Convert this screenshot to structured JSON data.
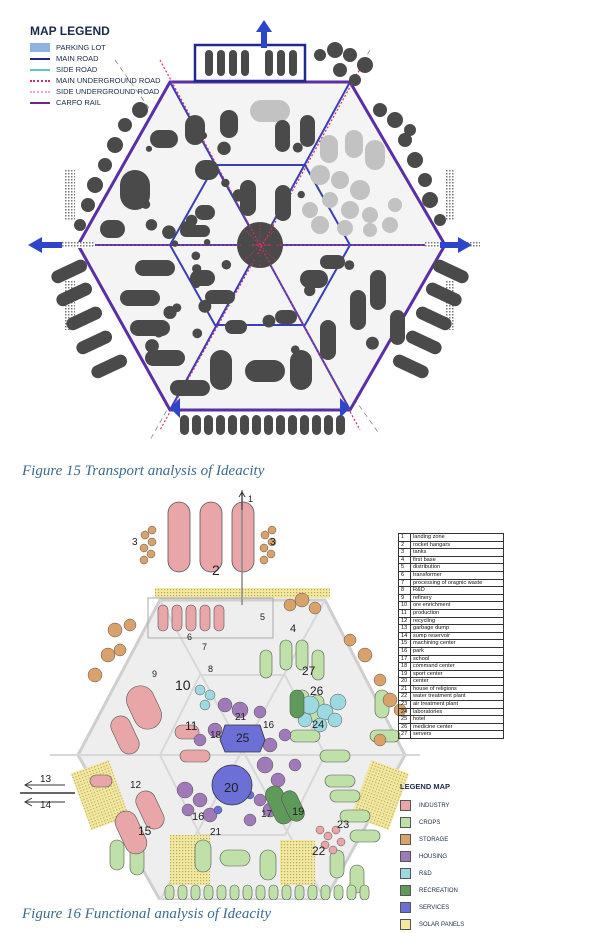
{
  "map1_legend": {
    "title": "MAP LEGEND",
    "items": [
      {
        "label": "PARKING LOT",
        "color": "#8fb3e0",
        "kind": "box"
      },
      {
        "label": "MAIN ROAD",
        "color": "#1f2a8a",
        "kind": "line"
      },
      {
        "label": "SIDE ROAD",
        "color": "#5fc3d0",
        "kind": "line"
      },
      {
        "label": "MAIN UNDERGROUND ROAD",
        "color": "#d0306a",
        "kind": "dots"
      },
      {
        "label": "SIDE UNDERGROUND ROAD",
        "color": "#f4a3c4",
        "kind": "dots"
      },
      {
        "label": "CARFO RAIL",
        "color": "#6a2a8a",
        "kind": "line"
      }
    ]
  },
  "caption1": "Figure 15 Transport analysis of Ideacity",
  "caption2": "Figure 16 Functional analysis of Ideacity",
  "map2_labels": {
    "arrow_left_top": "13",
    "arrow_left_bottom": "14",
    "arrow_top_right": "1",
    "nodes": [
      "2",
      "3",
      "3",
      "4",
      "5",
      "6",
      "7",
      "8",
      "9",
      "10",
      "11",
      "12",
      "15",
      "16",
      "16",
      "17",
      "18",
      "19",
      "20",
      "21",
      "21",
      "22",
      "23",
      "24",
      "25",
      "26",
      "27"
    ]
  },
  "numbered_list": [
    {
      "n": "1",
      "label": "landing zone"
    },
    {
      "n": "2",
      "label": "rocket hangars"
    },
    {
      "n": "3",
      "label": "tanks"
    },
    {
      "n": "4",
      "label": "first base"
    },
    {
      "n": "5",
      "label": "distribution"
    },
    {
      "n": "6",
      "label": "transformer"
    },
    {
      "n": "7",
      "label": "processing of oragnic waste"
    },
    {
      "n": "8",
      "label": "R&D"
    },
    {
      "n": "9",
      "label": "refinery"
    },
    {
      "n": "10",
      "label": "ore enrichment"
    },
    {
      "n": "11",
      "label": "production"
    },
    {
      "n": "12",
      "label": "recycling"
    },
    {
      "n": "13",
      "label": "garbage dump"
    },
    {
      "n": "14",
      "label": "sump reservoir"
    },
    {
      "n": "15",
      "label": "machining center"
    },
    {
      "n": "16",
      "label": "park"
    },
    {
      "n": "17",
      "label": "school"
    },
    {
      "n": "18",
      "label": "command center"
    },
    {
      "n": "19",
      "label": "sport center"
    },
    {
      "n": "20",
      "label": "center"
    },
    {
      "n": "21",
      "label": "house of religions"
    },
    {
      "n": "22",
      "label": "water treatment plant"
    },
    {
      "n": "23",
      "label": "air treatment plant"
    },
    {
      "n": "24",
      "label": "laboratories"
    },
    {
      "n": "25",
      "label": "hotel"
    },
    {
      "n": "26",
      "label": "medicine center"
    },
    {
      "n": "27",
      "label": "servers"
    }
  ],
  "map2_legend": {
    "title": "LEGEND MAP",
    "items": [
      {
        "label": "INDUSTRY",
        "color": "#e9a6a9"
      },
      {
        "label": "CROPS",
        "color": "#bfe0a8"
      },
      {
        "label": "STORAGE",
        "color": "#d9a26a"
      },
      {
        "label": "HOUSING",
        "color": "#a079b8"
      },
      {
        "label": "R&D",
        "color": "#9ed8e0"
      },
      {
        "label": "RECREATION",
        "color": "#5f9a5a"
      },
      {
        "label": "SERVICES",
        "color": "#6b6fd6"
      },
      {
        "label": "SOLAR PANELS",
        "color": "#f3e8a0"
      }
    ]
  }
}
